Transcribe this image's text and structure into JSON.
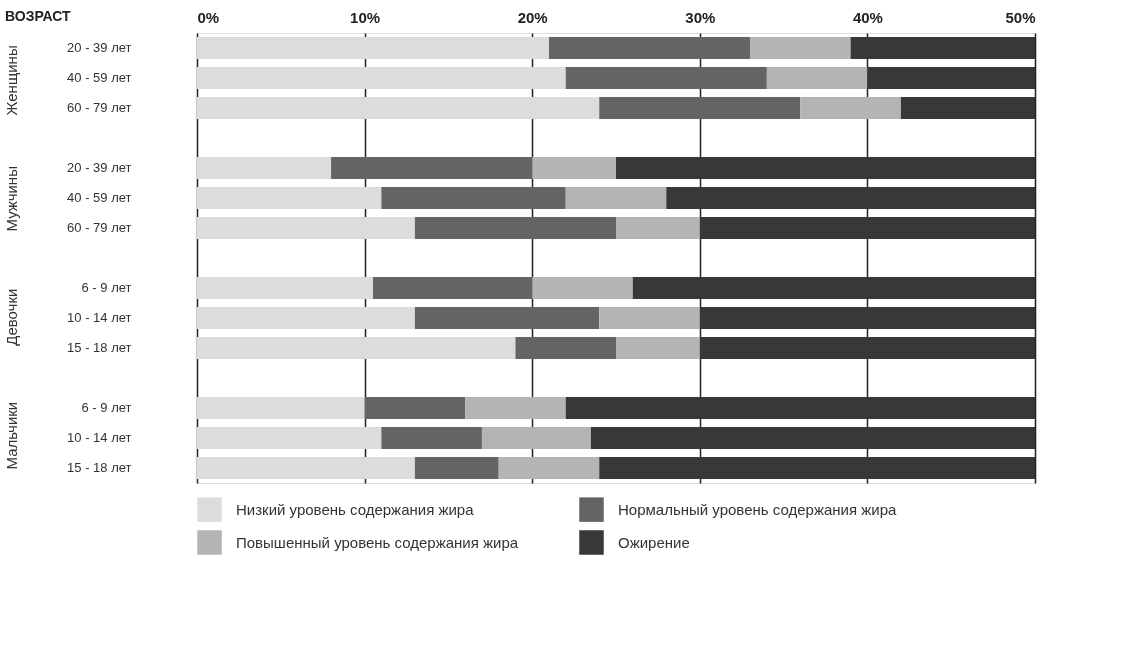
{
  "chart_data": {
    "type": "bar",
    "orientation": "horizontal",
    "stacked": true,
    "title": "ВОЗРАСТ",
    "categories": [
      "20 - 39 лет",
      "40 - 59 лет",
      "60 - 79 лет",
      null,
      "20 - 39 лет",
      "40 - 59 лет",
      "60 - 79 лет",
      null,
      "6 - 9 лет",
      "10 - 14 лет",
      "15 - 18 лет",
      null,
      "6 - 9 лет",
      "10 - 14 лет",
      "15 - 18 лет"
    ],
    "series": [
      {
        "name": "Низкий уровень содержания жира",
        "color": "#dcdcdc",
        "values": [
          21,
          22,
          24,
          null,
          8,
          11,
          13,
          null,
          10.5,
          13,
          19,
          null,
          10,
          11,
          13
        ]
      },
      {
        "name": "Нормальный уровень содержания жира",
        "color": "#646464",
        "values": [
          12,
          12,
          12,
          null,
          12,
          11,
          12,
          null,
          9.5,
          11,
          6,
          null,
          6,
          6,
          5
        ]
      },
      {
        "name": "Повышенный уровень содержания жира",
        "color": "#b4b4b4",
        "values": [
          6,
          6,
          6,
          null,
          5,
          6,
          5,
          null,
          6,
          6,
          5,
          null,
          6,
          6.5,
          6
        ]
      },
      {
        "name": "Ожирение",
        "color": "#383838",
        "values": [
          11,
          10,
          8,
          null,
          25,
          22,
          20,
          null,
          24,
          20,
          20,
          null,
          28,
          26.5,
          26
        ]
      }
    ],
    "annotations": [
      "Женщины",
      "Мужчины",
      "Девочки",
      "Мальчики"
    ],
    "xlim": [
      0,
      50
    ],
    "xticks": [
      {
        "value": 0,
        "label": "0%"
      },
      {
        "value": 10,
        "label": "10%"
      },
      {
        "value": 20,
        "label": "20%"
      },
      {
        "value": 30,
        "label": "30%"
      },
      {
        "value": 40,
        "label": "40%"
      },
      {
        "value": 50,
        "label": "50%"
      }
    ],
    "grid": "x",
    "legend": "bottom"
  }
}
